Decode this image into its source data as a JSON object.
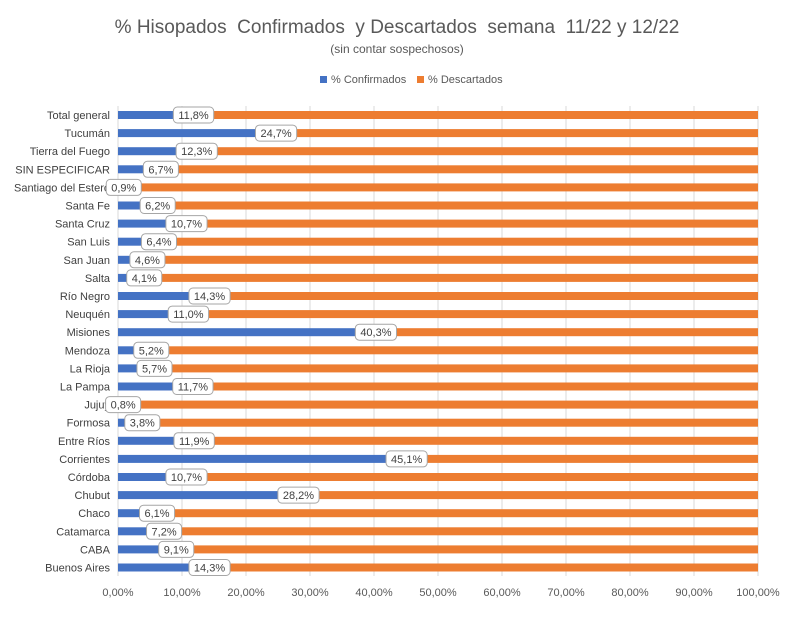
{
  "chart_data": {
    "type": "bar",
    "orientation": "horizontal",
    "stacked": true,
    "title": "% Hisopados  Confirmados  y Descartados  semana  11/22 y 12/22",
    "subtitle": "(sin contar sospechosos)",
    "legend": {
      "position": "top",
      "items": [
        "% Confirmados",
        "% Descartados"
      ]
    },
    "categories": [
      "Total general",
      "Tucumán",
      "Tierra del Fuego",
      "SIN ESPECIFICAR",
      "Santiago del Estero",
      "Santa Fe",
      "Santa Cruz",
      "San Luis",
      "San Juan",
      "Salta",
      "Río Negro",
      "Neuquén",
      "Misiones",
      "Mendoza",
      "La Rioja",
      "La Pampa",
      "Jujuy",
      "Formosa",
      "Entre Ríos",
      "Corrientes",
      "Córdoba",
      "Chubut",
      "Chaco",
      "Catamarca",
      "CABA",
      "Buenos Aires"
    ],
    "series": [
      {
        "name": "% Confirmados",
        "color": "#4472C4",
        "values": [
          11.8,
          24.7,
          12.3,
          6.7,
          0.9,
          6.2,
          10.7,
          6.4,
          4.6,
          4.1,
          14.3,
          11.0,
          40.3,
          5.2,
          5.7,
          11.7,
          0.8,
          3.8,
          11.9,
          45.1,
          10.7,
          28.2,
          6.1,
          7.2,
          9.1,
          14.3
        ]
      },
      {
        "name": "% Descartados",
        "color": "#ED7D31",
        "values": [
          88.2,
          75.3,
          87.7,
          93.3,
          99.1,
          93.8,
          89.3,
          93.6,
          95.4,
          95.9,
          85.7,
          89.0,
          59.7,
          94.8,
          94.3,
          88.3,
          99.2,
          96.2,
          88.1,
          54.9,
          89.3,
          71.8,
          93.9,
          92.8,
          90.9,
          85.7
        ]
      }
    ],
    "data_labels": [
      "11,8%",
      "24,7%",
      "12,3%",
      "6,7%",
      "0,9%",
      "6,2%",
      "10,7%",
      "6,4%",
      "4,6%",
      "4,1%",
      "14,3%",
      "11,0%",
      "40,3%",
      "5,2%",
      "5,7%",
      "11,7%",
      "0,8%",
      "3,8%",
      "11,9%",
      "45,1%",
      "10,7%",
      "28,2%",
      "6,1%",
      "7,2%",
      "9,1%",
      "14,3%"
    ],
    "xlim": [
      0,
      100
    ],
    "x_ticks": [
      0,
      10,
      20,
      30,
      40,
      50,
      60,
      70,
      80,
      90,
      100
    ],
    "x_tick_labels": [
      "0,00%",
      "10,00%",
      "20,00%",
      "30,00%",
      "40,00%",
      "50,00%",
      "60,00%",
      "70,00%",
      "80,00%",
      "90,00%",
      "100,00%"
    ],
    "grid": true,
    "xlabel": "",
    "ylabel": ""
  }
}
